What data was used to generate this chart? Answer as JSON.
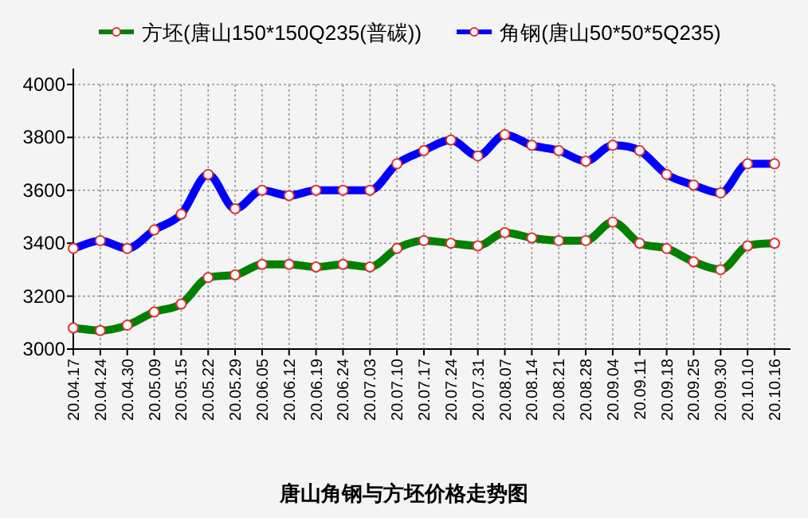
{
  "chart_data": {
    "type": "line",
    "title": "唐山角钢与方坯价格走势图",
    "categories": [
      "20.04.17",
      "20.04.24",
      "20.04.30",
      "20.05.09",
      "20.05.15",
      "20.05.22",
      "20.05.29",
      "20.06.05",
      "20.06.12",
      "20.06.19",
      "20.06.24",
      "20.07.03",
      "20.07.10",
      "20.07.17",
      "20.07.24",
      "20.07.31",
      "20.08.07",
      "20.08.14",
      "20.08.21",
      "20.08.28",
      "20.09.04",
      "20.09.11",
      "20.09.18",
      "20.09.25",
      "20.09.30",
      "20.10.10",
      "20.10.16"
    ],
    "series": [
      {
        "name": "方坯(唐山150*150Q235(普碳))",
        "color": "#008000",
        "values": [
          3080,
          3070,
          3090,
          3140,
          3170,
          3270,
          3280,
          3320,
          3320,
          3310,
          3320,
          3310,
          3380,
          3410,
          3400,
          3390,
          3440,
          3420,
          3410,
          3410,
          3480,
          3400,
          3380,
          3330,
          3300,
          3390,
          3400
        ]
      },
      {
        "name": "角钢(唐山50*50*5Q235)",
        "color": "#0000ff",
        "values": [
          3380,
          3410,
          3380,
          3450,
          3510,
          3660,
          3530,
          3600,
          3580,
          3600,
          3600,
          3600,
          3700,
          3750,
          3790,
          3730,
          3810,
          3770,
          3750,
          3710,
          3770,
          3750,
          3660,
          3620,
          3590,
          3700,
          3700
        ]
      }
    ],
    "ylim": [
      3000,
      4000
    ],
    "yticks": [
      3000,
      3200,
      3400,
      3600,
      3800,
      4000
    ],
    "grid": true,
    "legend": "top",
    "marker": "circle",
    "line_style": "solid"
  }
}
